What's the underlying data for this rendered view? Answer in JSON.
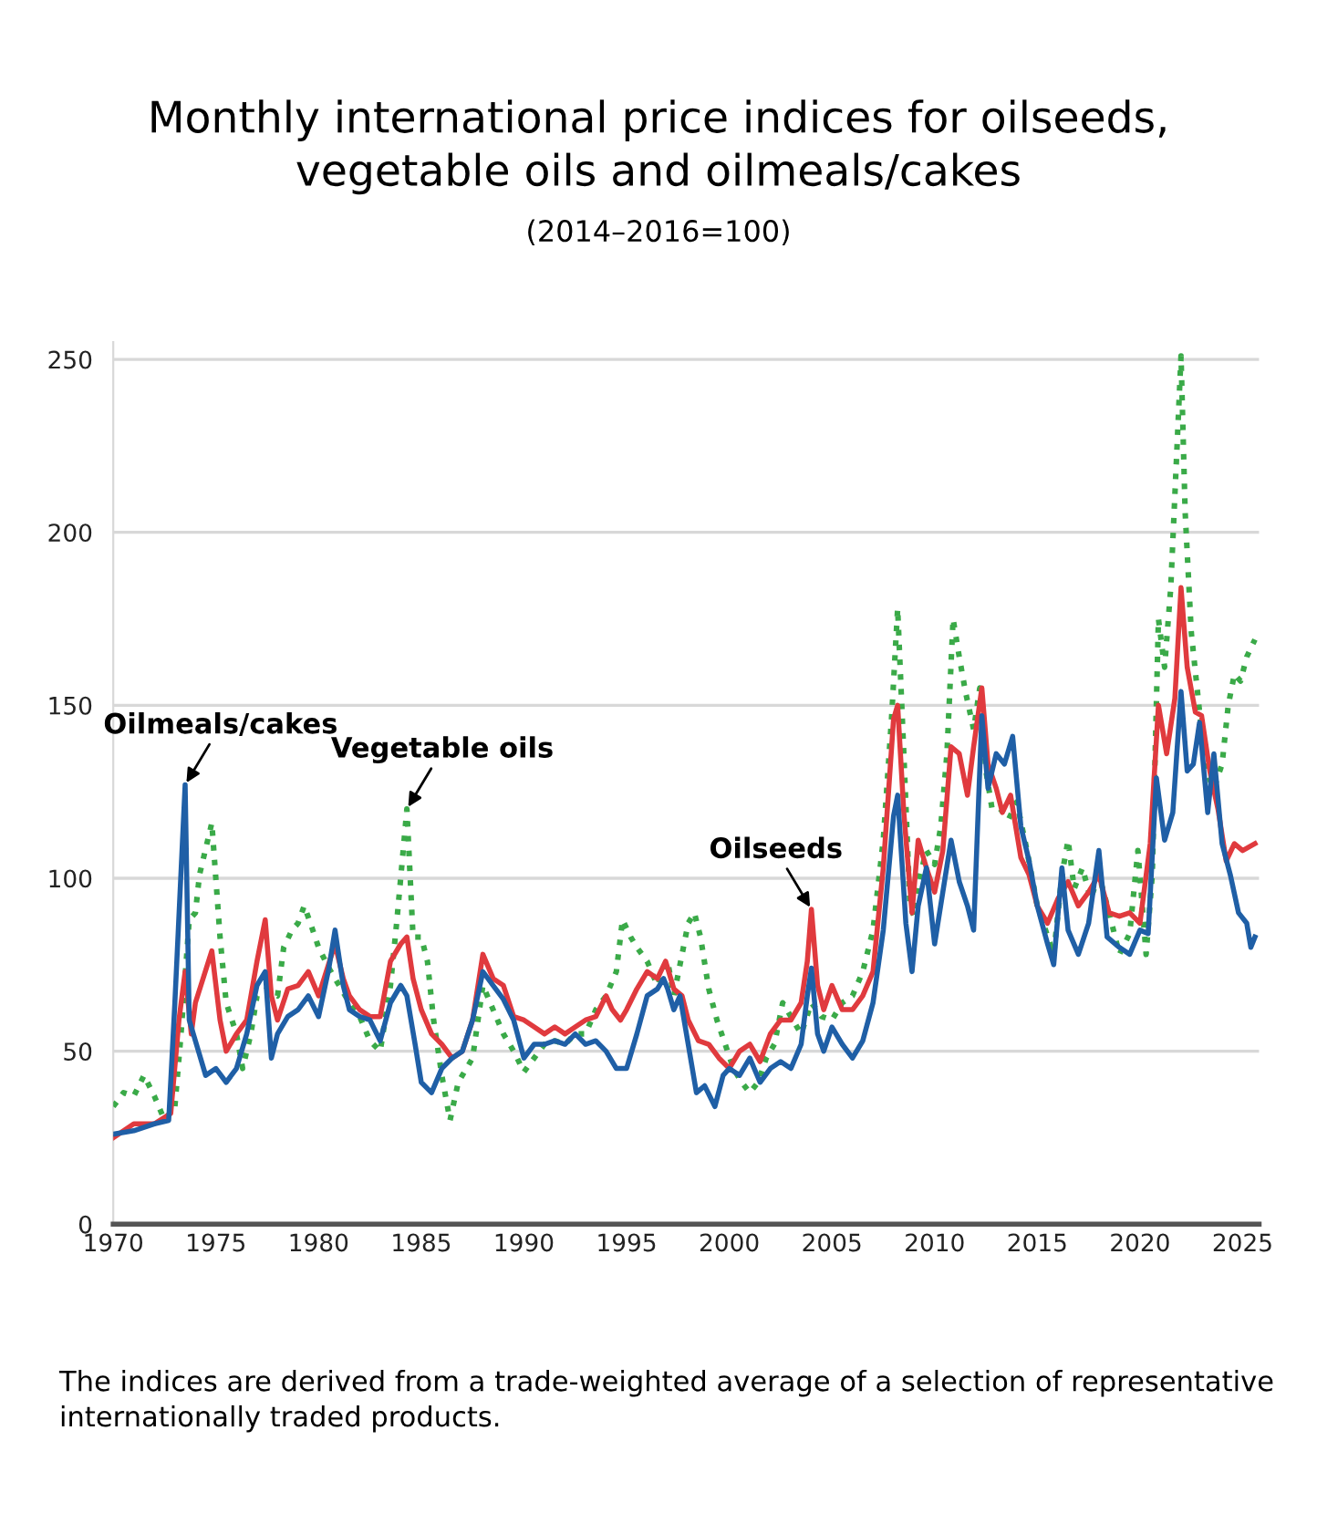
{
  "chart_data": {
    "type": "line",
    "title": "Monthly international price indices for oilseeds,\nvegetable oils and oilmeals/cakes",
    "subtitle": "(2014–2016=100)",
    "xlim": [
      1970,
      2025.8
    ],
    "xticks": [
      1970,
      1975,
      1980,
      1985,
      1990,
      1995,
      2000,
      2005,
      2010,
      2015,
      2020,
      2025
    ],
    "ylim": [
      0,
      255
    ],
    "yticks": [
      0,
      50,
      100,
      150,
      200,
      250
    ],
    "grid": "y",
    "legend": false,
    "marker": "none",
    "series": [
      {
        "color": "#3aaa48",
        "line_style": "dotted",
        "x": [
          1970,
          1970.5,
          1971,
          1971.5,
          1972,
          1972.5,
          1973,
          1973.3,
          1973.7,
          1974,
          1974.2,
          1974.8,
          1975.2,
          1975.5,
          1976,
          1976.3,
          1976.7,
          1977,
          1977.5,
          1978,
          1978.3,
          1978.7,
          1979,
          1979.3,
          1979.6,
          1980,
          1980.5,
          1981,
          1981.5,
          1982,
          1982.5,
          1983,
          1983.5,
          1983.8,
          1984.3,
          1984.6,
          1985,
          1985.3,
          1985.6,
          1986,
          1986.4,
          1986.8,
          1987,
          1987.5,
          1988,
          1988.5,
          1989,
          1989.5,
          1990,
          1990.5,
          1991,
          1991.5,
          1992,
          1992.5,
          1993,
          1993.5,
          1994,
          1994.5,
          1994.8,
          1995.2,
          1995.5,
          1996,
          1996.5,
          1997,
          1997.3,
          1997.8,
          1998,
          1998.3,
          1998.6,
          1999,
          1999.4,
          1999.8,
          2000.2,
          2000.6,
          2001,
          2001.4,
          2001.8,
          2002.2,
          2002.6,
          2003,
          2003.5,
          2004,
          2004.5,
          2005,
          2005.5,
          2006,
          2006.5,
          2007,
          2007.5,
          2007.9,
          2008.2,
          2008.5,
          2008.8,
          2009,
          2009.3,
          2009.6,
          2010,
          2010.3,
          2010.6,
          2010.9,
          2011.2,
          2011.5,
          2011.9,
          2012.2,
          2012.5,
          2012.8,
          2013.2,
          2013.6,
          2014,
          2014.5,
          2015,
          2015.4,
          2015.8,
          2016.2,
          2016.5,
          2016.8,
          2017.2,
          2017.6,
          2018,
          2018.5,
          2019,
          2019.5,
          2019.9,
          2020.3,
          2020.6,
          2020.9,
          2021.2,
          2021.5,
          2021.8,
          2022.0,
          2022.2,
          2022.5,
          2022.8,
          2023.2,
          2023.6,
          2024,
          2024.3,
          2024.6,
          2024.9,
          2025.2,
          2025.6
        ],
        "values": [
          34,
          38,
          37,
          43,
          37,
          30,
          34,
          55,
          88,
          90,
          101,
          116,
          83,
          64,
          55,
          45,
          55,
          66,
          68,
          66,
          80,
          85,
          87,
          92,
          87,
          80,
          74,
          69,
          64,
          60,
          53,
          50,
          69,
          87,
          120,
          83,
          83,
          76,
          59,
          43,
          30,
          41,
          43,
          48,
          69,
          62,
          55,
          50,
          44,
          48,
          52,
          53,
          52,
          55,
          55,
          62,
          66,
          73,
          88,
          83,
          80,
          76,
          69,
          76,
          66,
          81,
          87,
          90,
          83,
          68,
          59,
          52,
          45,
          41,
          38,
          41,
          48,
          52,
          64,
          60,
          55,
          64,
          60,
          59,
          64,
          66,
          73,
          85,
          111,
          146,
          178,
          136,
          92,
          89,
          101,
          108,
          104,
          115,
          136,
          175,
          164,
          154,
          143,
          155,
          131,
          120,
          120,
          117,
          122,
          108,
          92,
          85,
          78,
          101,
          111,
          97,
          103,
          94,
          101,
          90,
          78,
          84,
          108,
          78,
          101,
          175,
          161,
          184,
          224,
          251,
          206,
          171,
          154,
          131,
          126,
          133,
          150,
          159,
          157,
          164,
          169
        ]
      },
      {
        "color": "#e03a3e",
        "line_style": "solid",
        "x": [
          1970,
          1971,
          1972,
          1972.8,
          1973.2,
          1973.5,
          1973.8,
          1974,
          1974.8,
          1975.2,
          1975.5,
          1976,
          1976.5,
          1977,
          1977.4,
          1977.7,
          1978,
          1978.5,
          1979,
          1979.5,
          1980,
          1980.8,
          1981.2,
          1981.5,
          1982,
          1982.5,
          1983,
          1983.5,
          1984,
          1984.3,
          1984.6,
          1985,
          1985.5,
          1986,
          1986.5,
          1987,
          1987.5,
          1988,
          1988.5,
          1989,
          1989.5,
          1990,
          1990.5,
          1991,
          1991.5,
          1992,
          1992.5,
          1993,
          1993.5,
          1994,
          1994.3,
          1994.7,
          1995,
          1995.5,
          1996,
          1996.5,
          1996.9,
          1997.3,
          1997.7,
          1998,
          1998.5,
          1999,
          1999.5,
          2000,
          2000.5,
          2001,
          2001.5,
          2002,
          2002.5,
          2003,
          2003.5,
          2003.8,
          2004,
          2004.3,
          2004.6,
          2005,
          2005.5,
          2006,
          2006.5,
          2007,
          2007.5,
          2008,
          2008.2,
          2008.5,
          2008.9,
          2009.2,
          2009.6,
          2010,
          2010.4,
          2010.8,
          2011.2,
          2011.6,
          2011.9,
          2012.3,
          2012.6,
          2013,
          2013.3,
          2013.7,
          2014.2,
          2014.6,
          2015,
          2015.5,
          2016,
          2016.5,
          2017,
          2017.5,
          2018,
          2018.5,
          2019,
          2019.5,
          2020,
          2020.5,
          2020.9,
          2021.3,
          2021.7,
          2022.0,
          2022.3,
          2022.7,
          2023,
          2023.4,
          2023.8,
          2024.2,
          2024.6,
          2025,
          2025.6
        ],
        "values": [
          25,
          29,
          29,
          32,
          59,
          73,
          55,
          64,
          79,
          59,
          50,
          55,
          59,
          76,
          88,
          66,
          59,
          68,
          69,
          73,
          66,
          81,
          71,
          66,
          62,
          60,
          60,
          76,
          81,
          83,
          71,
          62,
          55,
          52,
          48,
          50,
          59,
          78,
          71,
          69,
          60,
          59,
          57,
          55,
          57,
          55,
          57,
          59,
          60,
          66,
          62,
          59,
          62,
          68,
          73,
          71,
          76,
          68,
          66,
          59,
          53,
          52,
          48,
          45,
          50,
          52,
          47,
          55,
          59,
          59,
          64,
          76,
          91,
          69,
          62,
          69,
          62,
          62,
          66,
          73,
          103,
          146,
          150,
          119,
          90,
          111,
          103,
          96,
          108,
          138,
          136,
          124,
          138,
          155,
          133,
          126,
          119,
          124,
          106,
          101,
          92,
          87,
          94,
          99,
          92,
          96,
          101,
          90,
          89,
          90,
          87,
          110,
          150,
          136,
          152,
          184,
          161,
          148,
          147,
          131,
          120,
          105,
          110,
          108,
          110
        ]
      },
      {
        "color": "#1f5fa6",
        "line_style": "solid",
        "x": [
          1970,
          1971,
          1972,
          1972.7,
          1973,
          1973.5,
          1973.7,
          1974,
          1974.5,
          1975,
          1975.5,
          1976,
          1976.5,
          1977,
          1977.4,
          1977.7,
          1978,
          1978.5,
          1979,
          1979.5,
          1980,
          1980.5,
          1980.8,
          1981.2,
          1981.5,
          1982,
          1982.5,
          1983,
          1983.5,
          1984,
          1984.3,
          1984.7,
          1985,
          1985.5,
          1986,
          1986.5,
          1987,
          1987.5,
          1988,
          1988.5,
          1989,
          1989.5,
          1990,
          1990.5,
          1991,
          1991.5,
          1992,
          1992.5,
          1993,
          1993.5,
          1994,
          1994.5,
          1995,
          1995.5,
          1996,
          1996.5,
          1996.8,
          1997,
          1997.3,
          1997.6,
          1998,
          1998.4,
          1998.8,
          1999.3,
          1999.7,
          2000,
          2000.5,
          2001,
          2001.5,
          2002,
          2002.5,
          2003,
          2003.5,
          2003.8,
          2004,
          2004.3,
          2004.6,
          2005,
          2005.5,
          2006,
          2006.5,
          2007,
          2007.5,
          2008,
          2008.2,
          2008.6,
          2008.9,
          2009.2,
          2009.6,
          2010,
          2010.4,
          2010.8,
          2011.2,
          2011.6,
          2011.9,
          2012.3,
          2012.6,
          2013,
          2013.4,
          2013.8,
          2014.2,
          2014.6,
          2015,
          2015.5,
          2015.8,
          2016.2,
          2016.5,
          2017,
          2017.5,
          2018,
          2018.4,
          2019,
          2019.5,
          2020,
          2020.4,
          2020.8,
          2021.2,
          2021.6,
          2022.0,
          2022.3,
          2022.6,
          2022.9,
          2023.3,
          2023.6,
          2024,
          2024.4,
          2024.8,
          2025.2,
          2025.4,
          2025.6
        ],
        "values": [
          26,
          27,
          29,
          30,
          64,
          127,
          59,
          53,
          43,
          45,
          41,
          45,
          55,
          69,
          73,
          48,
          55,
          60,
          62,
          66,
          60,
          74,
          85,
          69,
          62,
          60,
          59,
          53,
          64,
          69,
          66,
          52,
          41,
          38,
          45,
          48,
          50,
          59,
          73,
          69,
          65,
          59,
          48,
          52,
          52,
          53,
          52,
          55,
          52,
          53,
          50,
          45,
          45,
          55,
          66,
          68,
          71,
          68,
          62,
          66,
          52,
          38,
          40,
          34,
          43,
          45,
          43,
          48,
          41,
          45,
          47,
          45,
          52,
          66,
          74,
          55,
          50,
          57,
          52,
          48,
          53,
          64,
          85,
          118,
          124,
          87,
          73,
          92,
          103,
          81,
          96,
          111,
          99,
          92,
          85,
          147,
          126,
          136,
          133,
          141,
          115,
          105,
          92,
          81,
          75,
          103,
          85,
          78,
          87,
          108,
          83,
          80,
          78,
          85,
          84,
          129,
          111,
          119,
          154,
          131,
          133,
          145,
          119,
          136,
          110,
          101,
          90,
          87,
          80,
          83
        ]
      }
    ],
    "annotations": [
      {
        "text": "Oilmeals/cakes",
        "x": 1973.5,
        "y": 127
      },
      {
        "text": "Vegetable oils",
        "x": 1984.3,
        "y": 120
      },
      {
        "text": "Oilseeds",
        "x": 2004,
        "y": 91
      },
      "The indices are derived from a trade-weighted average of a selection of representative internationally traded products."
    ]
  }
}
